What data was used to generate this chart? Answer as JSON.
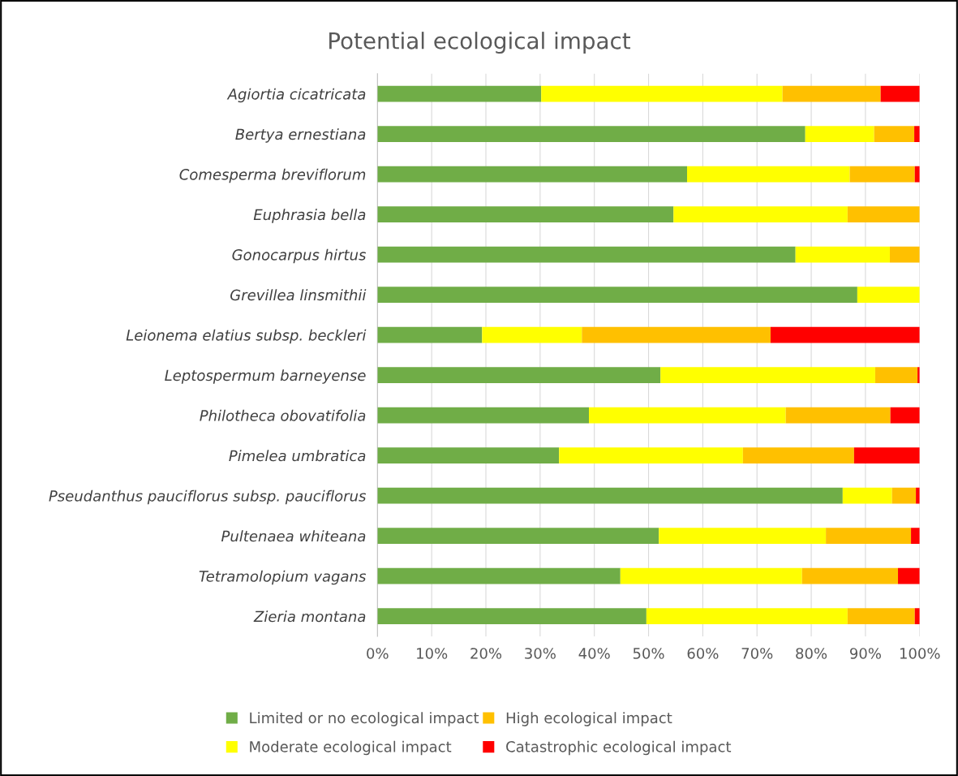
{
  "chart_data": {
    "type": "bar",
    "title": "Potential ecological impact",
    "orientation": "horizontal",
    "stacked": true,
    "categories": [
      "Agiortia cicatricata",
      "Bertya ernestiana",
      "Comesperma breviflorum",
      "Euphrasia bella",
      "Gonocarpus hirtus",
      "Grevillea linsmithii",
      "Leionema elatius subsp. beckleri",
      "Leptospermum barneyense",
      "Philotheca obovatifolia",
      "Pimelea umbratica",
      "Pseudanthus pauciflorus subsp. pauciflorus",
      "Pultenaea whiteana",
      "Tetramolopium vagans",
      "Zieria montana"
    ],
    "series": [
      {
        "name": "Limited or no ecological impact",
        "color": "#70ad47",
        "values": [
          30.2,
          78.9,
          57.1,
          54.6,
          77.1,
          88.5,
          19.3,
          52.2,
          39.0,
          33.5,
          85.8,
          51.9,
          44.8,
          49.6
        ]
      },
      {
        "name": "Moderate ecological impact",
        "color": "#ffff00",
        "values": [
          44.5,
          12.7,
          30.0,
          32.1,
          17.4,
          11.5,
          18.4,
          39.6,
          36.3,
          33.9,
          9.1,
          30.8,
          33.5,
          37.1
        ]
      },
      {
        "name": "High ecological impact",
        "color": "#ffc000",
        "values": [
          18.1,
          7.4,
          12.0,
          13.3,
          5.5,
          0,
          34.8,
          7.8,
          19.3,
          20.5,
          4.4,
          15.7,
          17.7,
          12.4
        ]
      },
      {
        "name": "Catastrophic ecological impact",
        "color": "#ff0000",
        "values": [
          7.2,
          1.0,
          0.9,
          0,
          0,
          0,
          27.5,
          0.4,
          5.4,
          12.1,
          0.7,
          1.6,
          4.0,
          0.9
        ]
      }
    ],
    "xlim": [
      0,
      100
    ],
    "xticks": [
      {
        "value": 0,
        "label": "0%"
      },
      {
        "value": 10,
        "label": "10%"
      },
      {
        "value": 20,
        "label": "20%"
      },
      {
        "value": 30,
        "label": "30%"
      },
      {
        "value": 40,
        "label": "40%"
      },
      {
        "value": 50,
        "label": "50%"
      },
      {
        "value": 60,
        "label": "60%"
      },
      {
        "value": 70,
        "label": "70%"
      },
      {
        "value": 80,
        "label": "80%"
      },
      {
        "value": 90,
        "label": "90%"
      },
      {
        "value": 100,
        "label": "100%"
      }
    ],
    "grid": "x",
    "legend": "bottom"
  }
}
